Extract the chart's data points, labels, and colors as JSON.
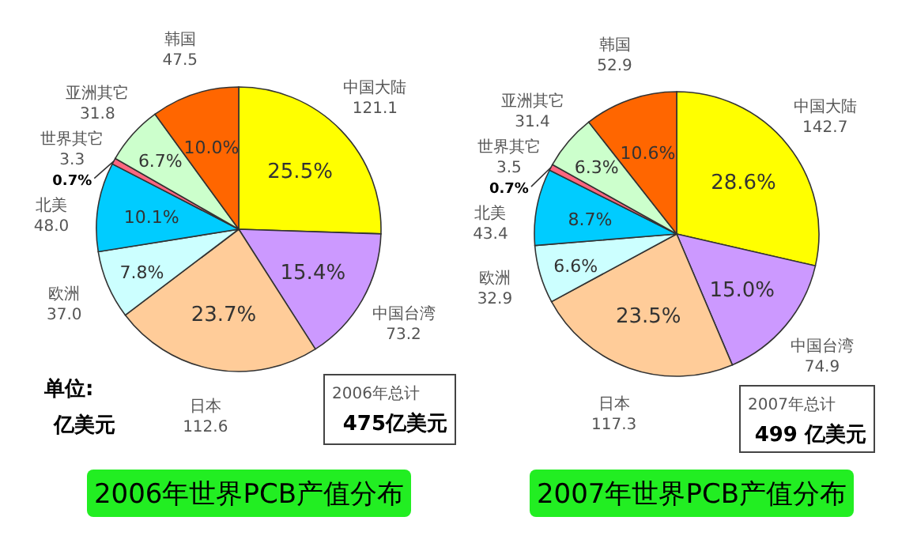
{
  "chart_data": [
    {
      "type": "pie",
      "title": "2006年世界PCB产值分布",
      "categories": [
        "中国大陆",
        "中国台湾",
        "日本",
        "欧洲",
        "北美",
        "世界其它",
        "亚洲其它",
        "韩国"
      ],
      "values": [
        121.1,
        73.2,
        112.6,
        37.0,
        48.0,
        3.3,
        31.8,
        47.5
      ],
      "colors": [
        "#ffff00",
        "#cc99ff",
        "#ffcc99",
        "#ccffff",
        "#00ccff",
        "#ff6680",
        "#ccffcc",
        "#ff6600"
      ],
      "value_labels": [
        "121.1",
        "73.2",
        "112.6",
        "37.0",
        "48.0",
        "3.3",
        "31.8",
        "47.5"
      ],
      "annotations": [
        "单位:",
        "亿美元",
        "2006年总计",
        "475亿美元",
        {
          "text": "25.5%",
          "x": "中国大陆"
        },
        {
          "text": "15.4%",
          "x": "中国台湾"
        },
        {
          "text": "23.7%",
          "x": "日本"
        },
        {
          "text": "7.8%",
          "x": "欧洲"
        },
        {
          "text": "10.1%",
          "x": "北美"
        },
        {
          "text": "0.7%",
          "x": "世界其它"
        },
        {
          "text": "6.7%",
          "x": "亚洲其它"
        },
        {
          "text": "10.0%",
          "x": "韩国"
        }
      ]
    },
    {
      "type": "pie",
      "title": "2007年世界PCB产值分布",
      "categories": [
        "中国大陆",
        "中国台湾",
        "日本",
        "欧洲",
        "北美",
        "世界其它",
        "亚洲其它",
        "韩国"
      ],
      "values": [
        142.7,
        74.9,
        117.3,
        32.9,
        43.4,
        3.5,
        31.4,
        52.9
      ],
      "colors": [
        "#ffff00",
        "#cc99ff",
        "#ffcc99",
        "#ccffff",
        "#00ccff",
        "#ff6680",
        "#ccffcc",
        "#ff6600"
      ],
      "value_labels": [
        "142.7",
        "74.9",
        "117.3",
        "32.9",
        "43.4",
        "3.5",
        "31.4",
        "52.9"
      ],
      "annotations": [
        "2007年总计",
        "499 亿美元",
        {
          "text": "28.6%",
          "x": "中国大陆"
        },
        {
          "text": "15.0%",
          "x": "中国台湾"
        },
        {
          "text": "23.5%",
          "x": "日本"
        },
        {
          "text": "6.6%",
          "x": "欧洲"
        },
        {
          "text": "8.7%",
          "x": "北美"
        },
        {
          "text": "0.7%",
          "x": "世界其它"
        },
        {
          "text": "6.3%",
          "x": "亚洲其它"
        },
        {
          "text": "10.6%",
          "x": "韩国"
        }
      ]
    }
  ]
}
